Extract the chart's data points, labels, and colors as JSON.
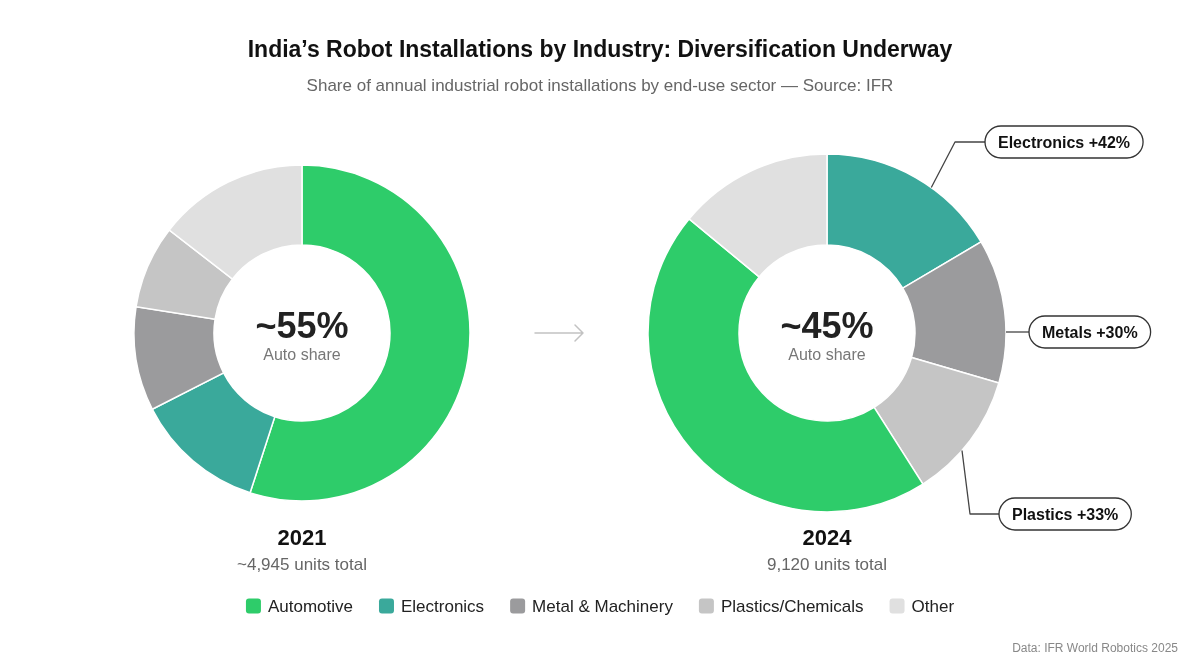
{
  "chart_data": [
    {
      "type": "donut",
      "title": "India’s Robot Installations by Industry: Diversification Underway",
      "subtitle": "Share of annual industrial robot installations by end-use sector — Source: IFR",
      "categories": [
        "Automotive",
        "Electronics",
        "Metal & Machinery",
        "Plastics/Chemicals",
        "Other"
      ],
      "values": [
        55,
        12.5,
        10,
        8,
        14.5
      ],
      "colors": [
        "#2ecc6a",
        "#3aa99b",
        "#9b9b9d",
        "#c5c5c5",
        "#e0e0e0"
      ],
      "legend": "bottom",
      "annotations": [
        "~55%",
        "Auto share",
        "2021",
        "~4,945 units total"
      ]
    },
    {
      "type": "donut",
      "categories": [
        null,
        null,
        null,
        null,
        null
      ],
      "values": [
        16.5,
        13,
        11.5,
        45,
        14
      ],
      "colors": [
        "#3aa99b",
        "#9b9b9d",
        "#c5c5c5",
        "#2ecc6a",
        "#e0e0e0"
      ],
      "annotations": [
        "~45%",
        "Auto share",
        "2024",
        "9,120 units total",
        "Electronics +42%",
        "Metals +30%",
        "Plastics +33%",
        "Data: IFR World Robotics 2025"
      ]
    }
  ]
}
